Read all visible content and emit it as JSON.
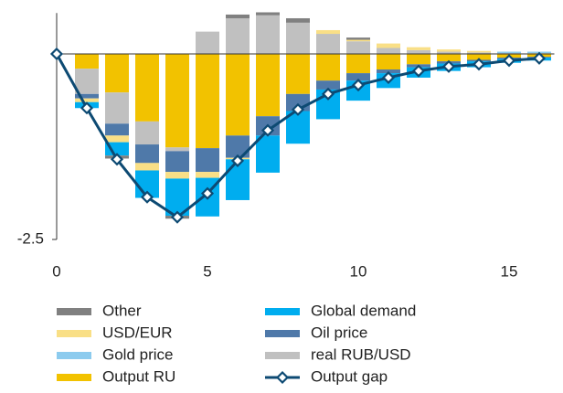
{
  "chart_data": {
    "type": "bar",
    "x": [
      0,
      1,
      2,
      3,
      4,
      5,
      6,
      7,
      8,
      9,
      10,
      11,
      12,
      13,
      14,
      15,
      16
    ],
    "series": [
      {
        "name": "Other",
        "color": "#808080",
        "values": [
          0,
          0,
          -0.04,
          0,
          -0.04,
          0,
          0.05,
          0.04,
          0.06,
          0,
          0.03,
          0,
          0,
          0,
          0,
          0,
          0
        ]
      },
      {
        "name": "Global demand",
        "color": "#00adef",
        "values": [
          0,
          -0.08,
          -0.18,
          -0.37,
          -0.5,
          -0.52,
          -0.55,
          -0.5,
          -0.44,
          -0.4,
          -0.27,
          -0.2,
          -0.14,
          -0.1,
          -0.08,
          -0.05,
          -0.04
        ]
      },
      {
        "name": "USD/EUR",
        "color": "#f9df86",
        "values": [
          0,
          -0.05,
          -0.09,
          -0.1,
          -0.09,
          -0.08,
          -0.02,
          0,
          0,
          0.05,
          0.02,
          0.06,
          0.04,
          0.03,
          0.02,
          0,
          0.01
        ]
      },
      {
        "name": "Oil price",
        "color": "#4f79a9",
        "values": [
          0,
          -0.06,
          -0.16,
          -0.25,
          -0.28,
          -0.32,
          -0.3,
          -0.26,
          -0.23,
          -0.12,
          -0.1,
          -0.05,
          -0.04,
          -0.03,
          -0.02,
          -0.02,
          -0.01
        ]
      },
      {
        "name": "Gold price",
        "color": "#8ccbee",
        "values": [
          0,
          0,
          0,
          0,
          0,
          0,
          0,
          0,
          0,
          0,
          0,
          0,
          0,
          0,
          0,
          0.02,
          0.02
        ]
      },
      {
        "name": "real RUB/USD",
        "color": "#c0c0c0",
        "values": [
          0,
          -0.34,
          -0.42,
          -0.31,
          -0.05,
          0.3,
          0.48,
          0.52,
          0.42,
          0.27,
          0.17,
          0.08,
          0.05,
          0.03,
          0.02,
          0.01,
          0
        ]
      },
      {
        "name": "Output RU",
        "color": "#f2c200",
        "values": [
          0,
          -0.2,
          -0.52,
          -0.91,
          -1.26,
          -1.27,
          -1.1,
          -0.84,
          -0.54,
          -0.36,
          -0.26,
          -0.21,
          -0.14,
          -0.1,
          -0.08,
          -0.05,
          -0.04
        ]
      }
    ],
    "line": {
      "name": "Output gap",
      "color": "#0d4a73",
      "values": [
        0,
        -0.73,
        -1.42,
        -1.93,
        -2.2,
        -1.88,
        -1.44,
        -1.03,
        -0.75,
        -0.54,
        -0.42,
        -0.32,
        -0.23,
        -0.17,
        -0.14,
        -0.09,
        -0.06
      ]
    },
    "xlim": [
      0,
      16.5
    ],
    "xticks": [
      0,
      5,
      10,
      15
    ],
    "ylim": [
      -2.5,
      0.55
    ],
    "yticks": [
      -2.5
    ]
  }
}
